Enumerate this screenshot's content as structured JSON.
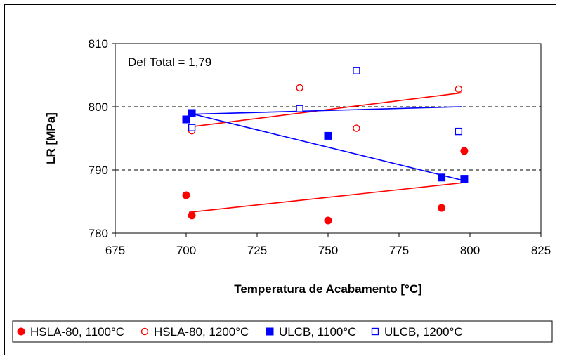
{
  "chart_data": {
    "type": "scatter",
    "title": "",
    "xlabel": "Temperatura de Acabamento [°C]",
    "ylabel": "LR [MPa]",
    "xlim": [
      675,
      825
    ],
    "ylim": [
      780,
      810
    ],
    "xticks": [
      "675",
      "700",
      "725",
      "750",
      "775",
      "800",
      "825"
    ],
    "yticks": [
      "780",
      "790",
      "800",
      "810"
    ],
    "grid": "horizontal dashed at 790 and 800",
    "annotation": "Def Total = 1,79",
    "legend_position": "bottom",
    "series": [
      {
        "name": "HSLA-80, 1100°C",
        "marker": "filled-circle",
        "color": "#ff0000",
        "points": [
          [
            700,
            786
          ],
          [
            702,
            782.8
          ],
          [
            750,
            782
          ],
          [
            790,
            784
          ],
          [
            798,
            793
          ]
        ],
        "trend": [
          [
            701,
            783.3
          ],
          [
            798,
            788
          ]
        ]
      },
      {
        "name": "HSLA-80, 1200°C",
        "marker": "open-circle",
        "color": "#ff0000",
        "points": [
          [
            702,
            796.2
          ],
          [
            740,
            803
          ],
          [
            760,
            796.6
          ],
          [
            796,
            802.8
          ]
        ],
        "trend": [
          [
            701,
            796.8
          ],
          [
            797,
            802.2
          ]
        ]
      },
      {
        "name": "ULCB, 1100°C",
        "marker": "filled-square",
        "color": "#0000ff",
        "points": [
          [
            700,
            798
          ],
          [
            702,
            799
          ],
          [
            750,
            795.4
          ],
          [
            790,
            788.8
          ],
          [
            798,
            788.6
          ]
        ],
        "trend": [
          [
            701,
            799
          ],
          [
            798,
            788.3
          ]
        ]
      },
      {
        "name": "ULCB, 1200°C",
        "marker": "open-square",
        "color": "#0000ff",
        "points": [
          [
            702,
            796.7
          ],
          [
            740,
            799.7
          ],
          [
            760,
            805.7
          ],
          [
            796,
            796.1
          ]
        ],
        "trend": [
          [
            701,
            798.8
          ],
          [
            797,
            800
          ]
        ]
      }
    ]
  }
}
